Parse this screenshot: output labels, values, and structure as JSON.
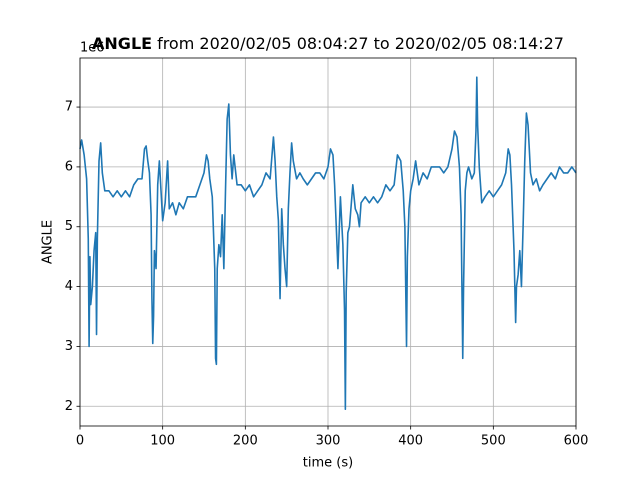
{
  "chart_data": {
    "type": "line",
    "title_bold": "ANGLE",
    "title": "from 2020/02/05 08:04:27 to 2020/02/05 08:14:27",
    "x_label": "time (s)",
    "y_label": "ANGLE",
    "y_offset_label": "1e6",
    "grid": true,
    "xlim": [
      0,
      600
    ],
    "xticks": [
      0,
      100,
      200,
      300,
      400,
      500,
      600
    ],
    "ylim": [
      1.67,
      7.82
    ],
    "yticks": [
      2,
      3,
      4,
      5,
      6,
      7
    ],
    "x": [
      0,
      2,
      5,
      8,
      10,
      11,
      12,
      13,
      15,
      17,
      19,
      20,
      21,
      23,
      25,
      27,
      30,
      35,
      40,
      45,
      50,
      55,
      60,
      65,
      70,
      75,
      78,
      80,
      82,
      84,
      86,
      87,
      88,
      89,
      90,
      92,
      94,
      96,
      98,
      100,
      103,
      106,
      108,
      112,
      116,
      120,
      125,
      130,
      135,
      140,
      145,
      150,
      153,
      155,
      157,
      160,
      163,
      164,
      165,
      166,
      168,
      170,
      172,
      174,
      176,
      178,
      180,
      182,
      184,
      186,
      190,
      195,
      200,
      205,
      210,
      215,
      220,
      225,
      230,
      234,
      236,
      238,
      240,
      242,
      244,
      246,
      248,
      250,
      252,
      254,
      256,
      258,
      262,
      266,
      270,
      275,
      280,
      285,
      290,
      295,
      300,
      303,
      306,
      308,
      312,
      315,
      318,
      320,
      321,
      322,
      324,
      326,
      330,
      333,
      336,
      338,
      340,
      345,
      350,
      355,
      360,
      365,
      370,
      375,
      380,
      384,
      388,
      391,
      393,
      395,
      396,
      398,
      400,
      403,
      406,
      410,
      415,
      420,
      425,
      430,
      435,
      440,
      445,
      450,
      453,
      456,
      459,
      461,
      462,
      463,
      464,
      466,
      468,
      470,
      474,
      477,
      479,
      480,
      481,
      483,
      486,
      490,
      495,
      500,
      505,
      510,
      515,
      518,
      520,
      522,
      525,
      527,
      528,
      530,
      532,
      534,
      536,
      538,
      540,
      542,
      545,
      548,
      552,
      556,
      560,
      565,
      570,
      575,
      580,
      585,
      590,
      595,
      600
    ],
    "series": [
      {
        "color": "#1f77b4",
        "values": [
          6.3,
          6.45,
          6.2,
          5.8,
          4.8,
          3.0,
          4.5,
          3.7,
          4.0,
          4.6,
          4.9,
          3.2,
          4.8,
          6.1,
          6.4,
          5.9,
          5.6,
          5.6,
          5.5,
          5.6,
          5.5,
          5.6,
          5.5,
          5.7,
          5.8,
          5.8,
          6.3,
          6.35,
          6.1,
          5.9,
          5.2,
          3.8,
          3.05,
          3.5,
          4.6,
          4.3,
          5.7,
          6.1,
          5.6,
          5.1,
          5.4,
          6.1,
          5.3,
          5.4,
          5.2,
          5.4,
          5.3,
          5.5,
          5.5,
          5.5,
          5.7,
          5.9,
          6.2,
          6.1,
          5.8,
          5.5,
          4.3,
          2.8,
          2.7,
          4.3,
          4.7,
          4.5,
          5.2,
          4.3,
          5.6,
          6.8,
          7.05,
          6.2,
          5.8,
          6.2,
          5.7,
          5.7,
          5.6,
          5.7,
          5.5,
          5.6,
          5.7,
          5.9,
          5.8,
          6.5,
          6.1,
          5.5,
          5.1,
          3.8,
          5.3,
          4.7,
          4.3,
          4.0,
          5.3,
          5.9,
          6.4,
          6.1,
          5.8,
          5.9,
          5.8,
          5.7,
          5.8,
          5.9,
          5.9,
          5.8,
          6.0,
          6.3,
          6.2,
          5.7,
          4.3,
          5.5,
          4.7,
          3.6,
          1.95,
          3.9,
          4.9,
          5.0,
          5.7,
          5.3,
          5.2,
          5.0,
          5.4,
          5.5,
          5.4,
          5.5,
          5.4,
          5.5,
          5.7,
          5.6,
          5.7,
          6.2,
          6.1,
          5.6,
          5.0,
          3.0,
          4.5,
          5.3,
          5.6,
          5.8,
          6.1,
          5.7,
          5.9,
          5.8,
          6.0,
          6.0,
          6.0,
          5.9,
          6.0,
          6.3,
          6.6,
          6.5,
          6.0,
          5.2,
          4.0,
          2.8,
          4.0,
          5.6,
          5.9,
          6.0,
          5.8,
          5.9,
          6.6,
          7.5,
          6.7,
          6.0,
          5.4,
          5.5,
          5.6,
          5.5,
          5.6,
          5.7,
          5.9,
          6.3,
          6.2,
          5.7,
          4.6,
          3.4,
          4.0,
          4.2,
          4.6,
          4.0,
          5.0,
          6.1,
          6.9,
          6.7,
          5.9,
          5.7,
          5.8,
          5.6,
          5.7,
          5.8,
          5.9,
          5.8,
          6.0,
          5.9,
          5.9,
          6.0,
          5.9
        ]
      }
    ]
  }
}
